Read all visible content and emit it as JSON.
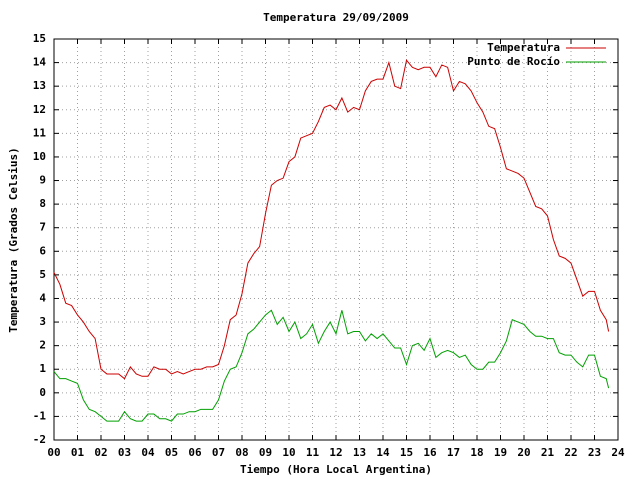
{
  "chart_data": {
    "type": "line",
    "title": "Temperatura 29/09/2009",
    "xlabel": "Tiempo (Hora Local Argentina)",
    "ylabel": "Temperatura (Grados Celsius)",
    "x": [
      0,
      0.25,
      0.5,
      0.75,
      1,
      1.25,
      1.5,
      1.75,
      2,
      2.25,
      2.5,
      2.75,
      3,
      3.25,
      3.5,
      3.75,
      4,
      4.25,
      4.5,
      4.75,
      5,
      5.25,
      5.5,
      5.75,
      6,
      6.25,
      6.5,
      6.75,
      7,
      7.25,
      7.5,
      7.75,
      8,
      8.25,
      8.5,
      8.75,
      9,
      9.25,
      9.5,
      9.75,
      10,
      10.25,
      10.5,
      10.75,
      11,
      11.25,
      11.5,
      11.75,
      12,
      12.25,
      12.5,
      12.75,
      13,
      13.25,
      13.5,
      13.75,
      14,
      14.25,
      14.5,
      14.75,
      15,
      15.25,
      15.5,
      15.75,
      16,
      16.25,
      16.5,
      16.75,
      17,
      17.25,
      17.5,
      17.75,
      18,
      18.25,
      18.5,
      18.75,
      19,
      19.25,
      19.5,
      19.75,
      20,
      20.25,
      20.5,
      20.75,
      21,
      21.25,
      21.5,
      21.75,
      22,
      22.25,
      22.5,
      22.75,
      23,
      23.25,
      23.5,
      23.6
    ],
    "series": [
      {
        "name": "Temperatura",
        "color": "#cc0000",
        "values": [
          5.1,
          4.6,
          3.8,
          3.7,
          3.3,
          3.0,
          2.6,
          2.3,
          1.0,
          0.8,
          0.8,
          0.8,
          0.6,
          1.1,
          0.8,
          0.7,
          0.7,
          1.1,
          1.0,
          1.0,
          0.8,
          0.9,
          0.8,
          0.9,
          1.0,
          1.0,
          1.1,
          1.1,
          1.2,
          2.0,
          3.1,
          3.3,
          4.2,
          5.5,
          5.9,
          6.2,
          7.6,
          8.8,
          9.0,
          9.1,
          9.8,
          10.0,
          10.8,
          10.9,
          11.0,
          11.5,
          12.1,
          12.2,
          12.0,
          12.5,
          11.9,
          12.1,
          12.0,
          12.8,
          13.2,
          13.3,
          13.3,
          14.0,
          13.0,
          12.9,
          14.1,
          13.8,
          13.7,
          13.8,
          13.8,
          13.4,
          13.9,
          13.8,
          12.8,
          13.2,
          13.1,
          12.8,
          12.3,
          11.9,
          11.3,
          11.2,
          10.4,
          9.5,
          9.4,
          9.3,
          9.1,
          8.5,
          7.9,
          7.8,
          7.5,
          6.5,
          5.8,
          5.7,
          5.5,
          4.8,
          4.1,
          4.3,
          4.3,
          3.5,
          3.1,
          2.6
        ]
      },
      {
        "name": "Punto de Rocío",
        "color": "#00a000",
        "values": [
          0.9,
          0.6,
          0.6,
          0.5,
          0.4,
          -0.3,
          -0.7,
          -0.8,
          -1.0,
          -1.2,
          -1.2,
          -1.2,
          -0.8,
          -1.1,
          -1.2,
          -1.2,
          -0.9,
          -0.9,
          -1.1,
          -1.1,
          -1.2,
          -0.9,
          -0.9,
          -0.8,
          -0.8,
          -0.7,
          -0.7,
          -0.7,
          -0.3,
          0.5,
          1.0,
          1.1,
          1.7,
          2.5,
          2.7,
          3.0,
          3.3,
          3.5,
          2.9,
          3.2,
          2.6,
          3.0,
          2.3,
          2.5,
          2.9,
          2.1,
          2.6,
          3.0,
          2.5,
          3.5,
          2.5,
          2.6,
          2.6,
          2.2,
          2.5,
          2.3,
          2.5,
          2.2,
          1.9,
          1.9,
          1.2,
          2.0,
          2.1,
          1.8,
          2.3,
          1.5,
          1.7,
          1.8,
          1.7,
          1.5,
          1.6,
          1.2,
          1.0,
          1.0,
          1.3,
          1.3,
          1.7,
          2.2,
          3.1,
          3.0,
          2.9,
          2.6,
          2.4,
          2.4,
          2.3,
          2.3,
          1.7,
          1.6,
          1.6,
          1.3,
          1.1,
          1.6,
          1.6,
          0.7,
          0.6,
          0.2
        ]
      }
    ],
    "xlim": [
      0,
      24
    ],
    "xticks": [
      {
        "value": 0,
        "label": "00"
      },
      {
        "value": 1,
        "label": "01"
      },
      {
        "value": 2,
        "label": "02"
      },
      {
        "value": 3,
        "label": "03"
      },
      {
        "value": 4,
        "label": "04"
      },
      {
        "value": 5,
        "label": "05"
      },
      {
        "value": 6,
        "label": "06"
      },
      {
        "value": 7,
        "label": "07"
      },
      {
        "value": 8,
        "label": "08"
      },
      {
        "value": 9,
        "label": "09"
      },
      10,
      11,
      12,
      13,
      14,
      15,
      16,
      17,
      18,
      19,
      20,
      21,
      22,
      23,
      24
    ],
    "ylim": [
      -2,
      15
    ],
    "yticks": [
      -2,
      -1,
      0,
      1,
      2,
      3,
      4,
      5,
      6,
      7,
      8,
      9,
      10,
      11,
      12,
      13,
      14,
      15
    ],
    "grid": true,
    "legend": "top-right"
  }
}
